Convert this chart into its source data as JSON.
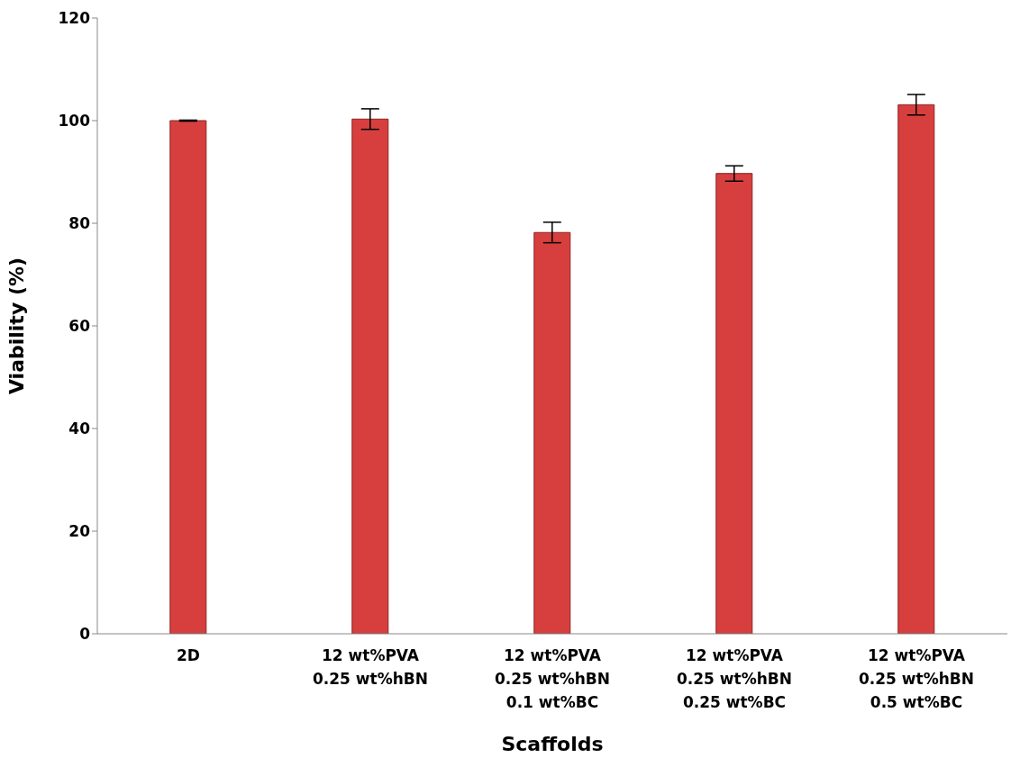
{
  "chart_data": {
    "type": "bar",
    "xlabel": "Scaffolds",
    "ylabel": "Viability (%)",
    "categories": [
      "2D",
      "12 wt%PVA\n0.25 wt%hBN",
      "12 wt%PVA\n0.25 wt%hBN\n0.1 wt%BC",
      "12 wt%PVA\n0.25 wt%hBN\n0.25 wt%BC",
      "12 wt%PVA\n0.25 wt%hBN\n0.5 wt%BC"
    ],
    "values": [
      100,
      100.3,
      78.2,
      89.7,
      103.1
    ],
    "errors": [
      0.1,
      2,
      2,
      1.5,
      2
    ],
    "color": "#d73f3f",
    "ylim": [
      0,
      120
    ],
    "yticks": [
      0,
      20,
      40,
      60,
      80,
      100,
      120
    ],
    "grid": false
  }
}
